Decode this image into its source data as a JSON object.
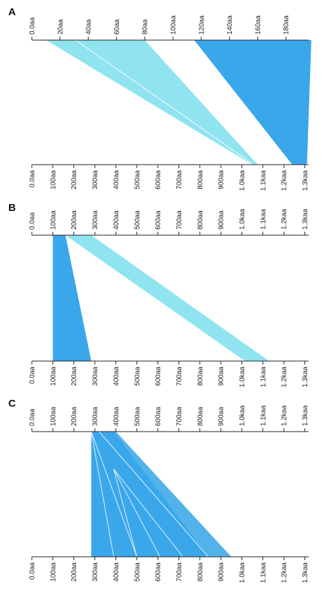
{
  "colors": {
    "light_cyan": "#8fe4ef",
    "blue": "#3ba7eb",
    "mid_blue": "#52b3ea",
    "separator": "#ffffff",
    "axis": "#222222"
  },
  "panels": [
    {
      "label": "A",
      "top_axis": {
        "ticks": [
          {
            "value": 0,
            "label": "0.0aa"
          },
          {
            "value": 20,
            "label": "20aa"
          },
          {
            "value": 40,
            "label": "40aa"
          },
          {
            "value": 60,
            "label": "60aa"
          },
          {
            "value": 80,
            "label": "80aa"
          },
          {
            "value": 100,
            "label": "100aa"
          },
          {
            "value": 120,
            "label": "120aa"
          },
          {
            "value": 140,
            "label": "140aa"
          },
          {
            "value": 160,
            "label": "160aa"
          },
          {
            "value": 180,
            "label": "180aa"
          }
        ]
      },
      "bottom_axis": {
        "ticks": [
          {
            "value": 0,
            "label": "0.0aa"
          },
          {
            "value": 100,
            "label": "100aa"
          },
          {
            "value": 200,
            "label": "200aa"
          },
          {
            "value": 300,
            "label": "300aa"
          },
          {
            "value": 400,
            "label": "400aa"
          },
          {
            "value": 500,
            "label": "500aa"
          },
          {
            "value": 600,
            "label": "600aa"
          },
          {
            "value": 700,
            "label": "700aa"
          },
          {
            "value": 800,
            "label": "800aa"
          },
          {
            "value": 900,
            "label": "900aa"
          },
          {
            "value": 1000,
            "label": "1.0kaa"
          },
          {
            "value": 1100,
            "label": "1.1kaa"
          },
          {
            "value": 1200,
            "label": "1.2kaa"
          },
          {
            "value": 1300,
            "label": "1.3kaa"
          }
        ]
      },
      "alignments": [
        {
          "top": [
            10,
            80
          ],
          "bottom": [
            1050,
            1075
          ],
          "color": "light_cyan"
        },
        {
          "top": [
            115,
            198
          ],
          "bottom": [
            1240,
            1310
          ],
          "color": "blue"
        }
      ],
      "separators": [
        {
          "top": 31,
          "bottom": 1056
        }
      ]
    },
    {
      "label": "B",
      "top_axis": {
        "ticks": [
          {
            "value": 0,
            "label": "0.0aa"
          },
          {
            "value": 100,
            "label": "100aa"
          },
          {
            "value": 200,
            "label": "200aa"
          },
          {
            "value": 300,
            "label": "300aa"
          },
          {
            "value": 400,
            "label": "400aa"
          },
          {
            "value": 500,
            "label": "500aa"
          },
          {
            "value": 600,
            "label": "600aa"
          },
          {
            "value": 700,
            "label": "700aa"
          },
          {
            "value": 800,
            "label": "800aa"
          },
          {
            "value": 900,
            "label": "900aa"
          },
          {
            "value": 1000,
            "label": "1.0kaa"
          },
          {
            "value": 1100,
            "label": "1.1kaa"
          },
          {
            "value": 1200,
            "label": "1.2kaa"
          },
          {
            "value": 1300,
            "label": "1.3kaa"
          }
        ]
      },
      "bottom_axis": {
        "ticks": [
          {
            "value": 0,
            "label": "0.0aa"
          },
          {
            "value": 100,
            "label": "100aa"
          },
          {
            "value": 200,
            "label": "200aa"
          },
          {
            "value": 300,
            "label": "300aa"
          },
          {
            "value": 400,
            "label": "400aa"
          },
          {
            "value": 500,
            "label": "500aa"
          },
          {
            "value": 600,
            "label": "600aa"
          },
          {
            "value": 700,
            "label": "700aa"
          },
          {
            "value": 800,
            "label": "800aa"
          },
          {
            "value": 900,
            "label": "900aa"
          },
          {
            "value": 1000,
            "label": "1.0kaa"
          },
          {
            "value": 1100,
            "label": "1.1kaa"
          },
          {
            "value": 1200,
            "label": "1.2kaa"
          },
          {
            "value": 1300,
            "label": "1.3kaa"
          }
        ]
      },
      "alignments": [
        {
          "top": [
            160,
            283
          ],
          "bottom": [
            1015,
            1130
          ],
          "color": "light_cyan"
        },
        {
          "top": [
            100,
            160
          ],
          "bottom": [
            100,
            283
          ],
          "color": "blue"
        }
      ],
      "separators": []
    },
    {
      "label": "C",
      "top_axis": {
        "ticks": [
          {
            "value": 0,
            "label": "0.0aa"
          },
          {
            "value": 100,
            "label": "100aa"
          },
          {
            "value": 200,
            "label": "200aa"
          },
          {
            "value": 300,
            "label": "300aa"
          },
          {
            "value": 400,
            "label": "400aa"
          },
          {
            "value": 500,
            "label": "500aa"
          },
          {
            "value": 600,
            "label": "600aa"
          },
          {
            "value": 700,
            "label": "700aa"
          },
          {
            "value": 800,
            "label": "800aa"
          },
          {
            "value": 900,
            "label": "900aa"
          },
          {
            "value": 1000,
            "label": "1.0kaa"
          },
          {
            "value": 1100,
            "label": "1.1kaa"
          },
          {
            "value": 1200,
            "label": "1.2kaa"
          },
          {
            "value": 1300,
            "label": "1.3kaa"
          }
        ]
      },
      "bottom_axis": {
        "ticks": [
          {
            "value": 0,
            "label": "0.0aa"
          },
          {
            "value": 100,
            "label": "100aa"
          },
          {
            "value": 200,
            "label": "200aa"
          },
          {
            "value": 300,
            "label": "300aa"
          },
          {
            "value": 400,
            "label": "400aa"
          },
          {
            "value": 500,
            "label": "500aa"
          },
          {
            "value": 600,
            "label": "600aa"
          },
          {
            "value": 700,
            "label": "700aa"
          },
          {
            "value": 800,
            "label": "800aa"
          },
          {
            "value": 900,
            "label": "900aa"
          },
          {
            "value": 1000,
            "label": "1.0kaa"
          },
          {
            "value": 1100,
            "label": "1.1kaa"
          },
          {
            "value": 1200,
            "label": "1.2kaa"
          },
          {
            "value": 1300,
            "label": "1.3kaa"
          }
        ]
      },
      "alignments": [
        {
          "top": [
            283,
            390
          ],
          "bottom": [
            283,
            950
          ],
          "color": "blue"
        },
        {
          "top": [
            390,
            400
          ],
          "bottom": [
            840,
            950
          ],
          "color": "mid_blue"
        }
      ],
      "fan_lines": [
        {
          "top": 283,
          "bottom": 390
        },
        {
          "top": 283,
          "bottom": 500
        },
        {
          "top": 390,
          "bottom": 500,
          "from_fraction": 0.3
        },
        {
          "top": 390,
          "bottom": 610,
          "from_fraction": 0.3
        },
        {
          "top": 390,
          "bottom": 720,
          "from_fraction": 0.3
        },
        {
          "top": 320,
          "bottom": 840
        }
      ],
      "separators": []
    }
  ]
}
